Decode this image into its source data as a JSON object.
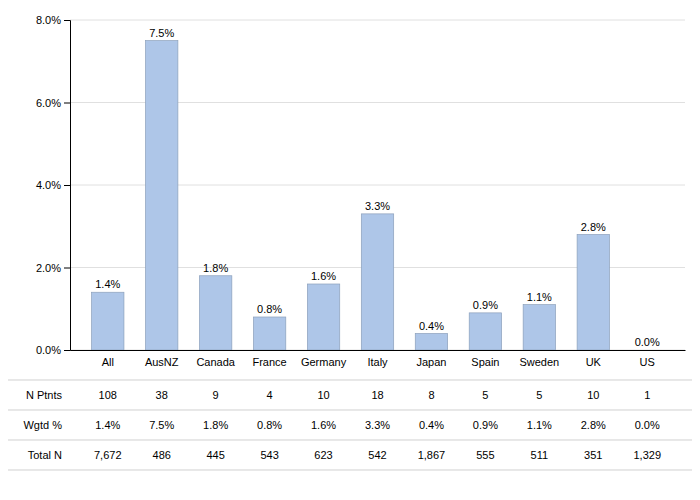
{
  "chart_data": {
    "type": "bar",
    "categories": [
      "All",
      "AusNZ",
      "Canada",
      "France",
      "Germany",
      "Italy",
      "Japan",
      "Spain",
      "Sweden",
      "UK",
      "US"
    ],
    "values": [
      1.4,
      7.5,
      1.8,
      0.8,
      1.6,
      3.3,
      0.4,
      0.9,
      1.1,
      2.8,
      0.0
    ],
    "value_labels": [
      "1.4%",
      "7.5%",
      "1.8%",
      "0.8%",
      "1.6%",
      "3.3%",
      "0.4%",
      "0.9%",
      "1.1%",
      "2.8%",
      "0.0%"
    ],
    "data_labels": true,
    "color": "#aec6e8",
    "ylim": [
      0,
      8.0
    ],
    "yticks": [
      {
        "value": 0.0,
        "label": "0.0%"
      },
      {
        "value": 2.0,
        "label": "2.0%"
      },
      {
        "value": 4.0,
        "label": "4.0%"
      },
      {
        "value": 6.0,
        "label": "6.0%"
      },
      {
        "value": 8.0,
        "label": "8.0%"
      }
    ],
    "grid": true,
    "table": [
      {
        "name": "N Ptnts",
        "values": [
          108,
          38,
          9,
          4,
          10,
          18,
          8,
          5,
          5,
          10,
          1
        ]
      },
      {
        "name": "Wgtd %",
        "values": [
          1.4,
          7.5,
          1.8,
          0.8,
          1.6,
          3.3,
          0.4,
          0.9,
          1.1,
          2.8,
          0.0
        ],
        "value_labels": [
          "1.4%",
          "7.5%",
          "1.8%",
          "0.8%",
          "1.6%",
          "3.3%",
          "0.4%",
          "0.9%",
          "1.1%",
          "2.8%",
          "0.0%"
        ]
      },
      {
        "name": "Total N",
        "values": [
          7672,
          486,
          445,
          543,
          623,
          542,
          1867,
          555,
          511,
          351,
          1329
        ],
        "value_labels": [
          "7,672",
          "486",
          "445",
          "543",
          "623",
          "542",
          "1,867",
          "555",
          "511",
          "351",
          "1,329"
        ]
      }
    ]
  }
}
